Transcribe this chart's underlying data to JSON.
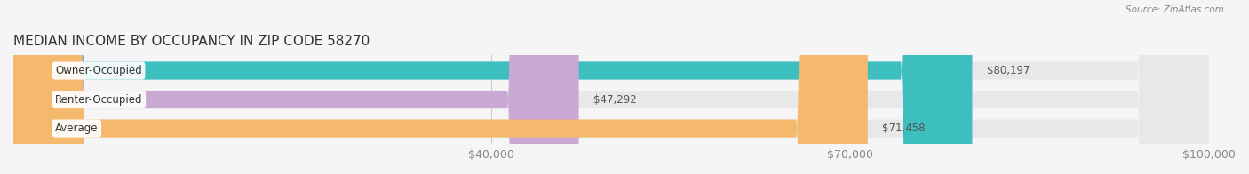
{
  "title": "MEDIAN INCOME BY OCCUPANCY IN ZIP CODE 58270",
  "source": "Source: ZipAtlas.com",
  "categories": [
    "Owner-Occupied",
    "Renter-Occupied",
    "Average"
  ],
  "values": [
    80197,
    47292,
    71458
  ],
  "bar_colors": [
    "#3dbfbf",
    "#c9a8d4",
    "#f5b96e"
  ],
  "label_colors": [
    "#3dbfbf",
    "#c9a8d4",
    "#f5b96e"
  ],
  "bar_labels": [
    "$80,197",
    "$47,292",
    "$71,458"
  ],
  "xlim": [
    0,
    100000
  ],
  "xticks": [
    0,
    40000,
    70000,
    100000
  ],
  "xtick_labels": [
    "",
    "$40,000",
    "$70,000",
    "$100,000"
  ],
  "background_color": "#f5f5f5",
  "bar_background": "#e8e8e8",
  "title_fontsize": 11,
  "tick_fontsize": 9,
  "bar_height": 0.62,
  "figsize": [
    14.06,
    1.96
  ],
  "dpi": 100
}
